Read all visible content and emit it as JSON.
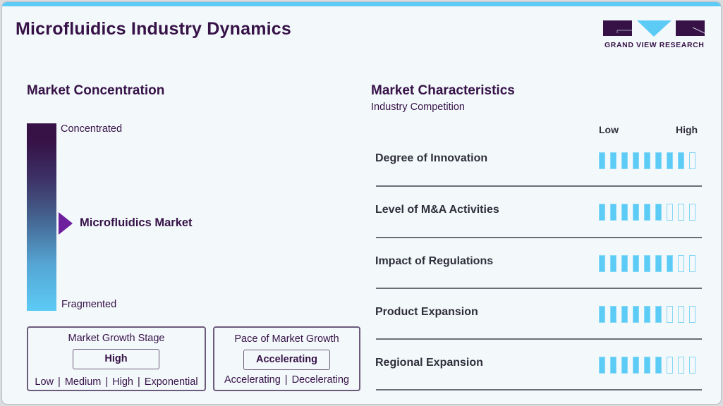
{
  "header": {
    "title": "Microfluidics Industry Dynamics",
    "logo_text": "GRAND VIEW RESEARCH"
  },
  "colors": {
    "brand_purple": "#361247",
    "accent_blue": "#5ccbf5",
    "marker_purple": "#6d1f9e",
    "background": "#f3f8fb"
  },
  "concentration": {
    "title": "Market Concentration",
    "top_label": "Concentrated",
    "bottom_label": "Fragmented",
    "marker_label": "Microfluidics Market",
    "marker_icon": "triangle-right-icon"
  },
  "growth_stage": {
    "title": "Market Growth Stage",
    "value": "High",
    "options": [
      "Low",
      "Medium",
      "High",
      "Exponential"
    ]
  },
  "growth_pace": {
    "title": "Pace of Market Growth",
    "value": "Accelerating",
    "options": [
      "Accelerating",
      "Decelerating"
    ]
  },
  "characteristics": {
    "title": "Market Characteristics",
    "subtitle": "Industry Competition",
    "scale_low": "Low",
    "scale_high": "High",
    "max_segments": 9,
    "rows": [
      {
        "label": "Degree of Innovation",
        "filled": 8
      },
      {
        "label": "Level of M&A Activities",
        "filled": 6
      },
      {
        "label": "Impact of Regulations",
        "filled": 7
      },
      {
        "label": "Product Expansion",
        "filled": 6
      },
      {
        "label": "Regional Expansion",
        "filled": 6
      }
    ]
  }
}
